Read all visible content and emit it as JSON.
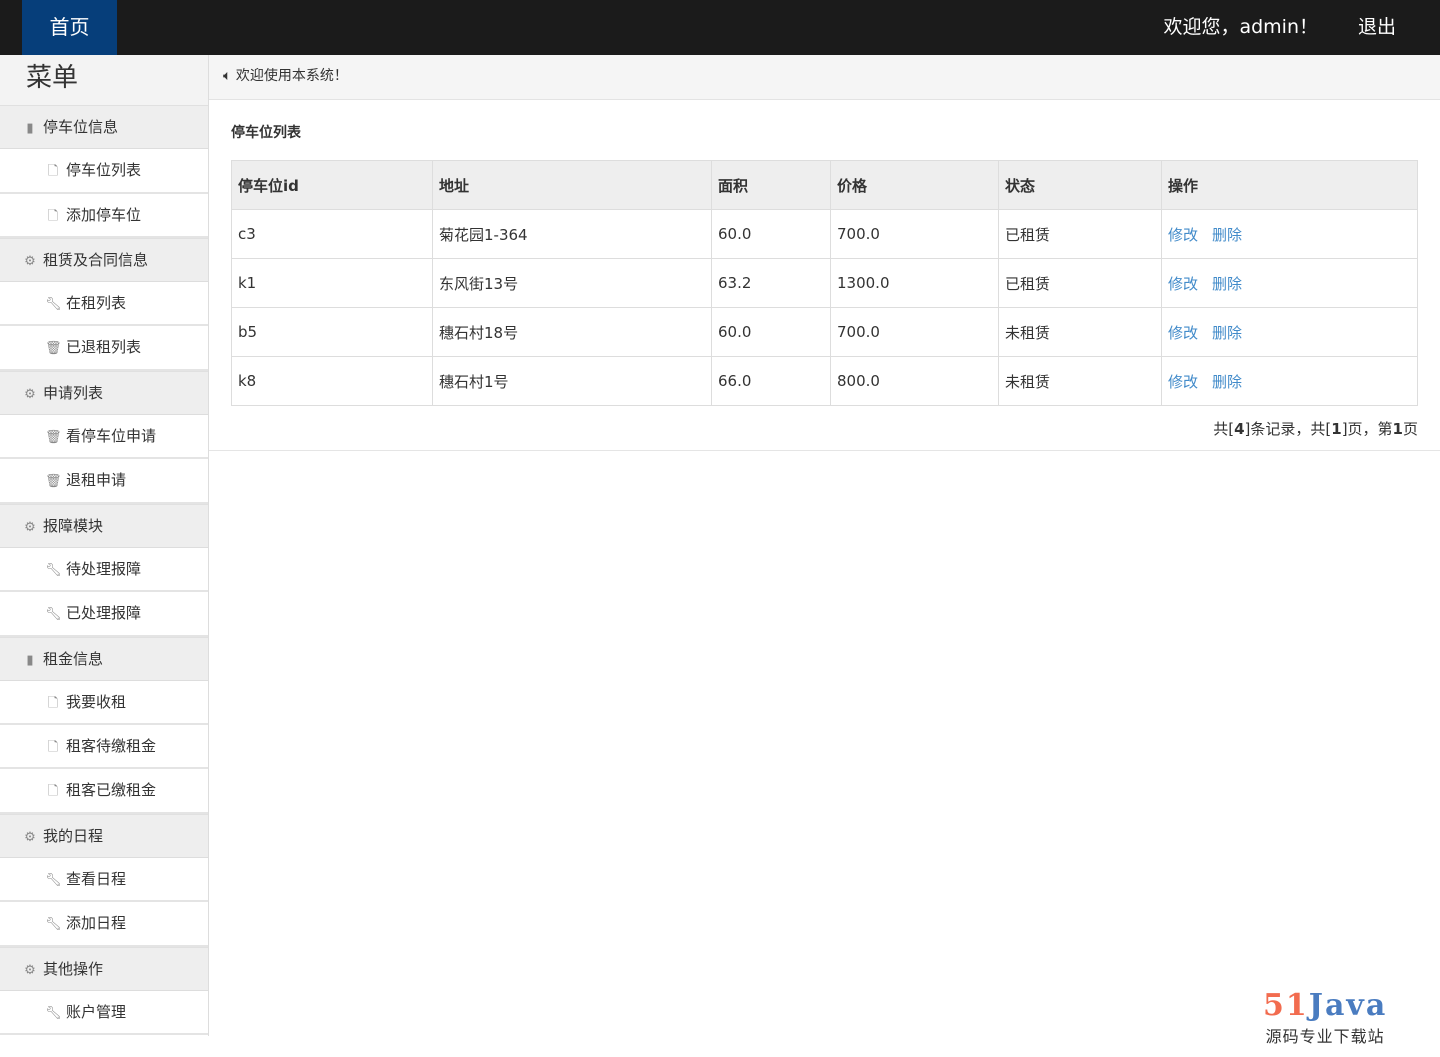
{
  "header": {
    "home": "首页",
    "welcome": "欢迎您，admin！",
    "logout": "退出"
  },
  "sidebar": {
    "title": "菜单",
    "groups": [
      {
        "label": "停车位信息",
        "icon": "book-icon",
        "items": [
          {
            "label": "停车位列表",
            "icon": "file-icon"
          },
          {
            "label": "添加停车位",
            "icon": "file-icon"
          }
        ]
      },
      {
        "label": "租赁及合同信息",
        "icon": "gear-icon",
        "items": [
          {
            "label": "在租列表",
            "icon": "wrench-icon"
          },
          {
            "label": "已退租列表",
            "icon": "trash-icon"
          }
        ]
      },
      {
        "label": "申请列表",
        "icon": "gear-icon",
        "items": [
          {
            "label": "看停车位申请",
            "icon": "trash-icon"
          },
          {
            "label": "退租申请",
            "icon": "trash-icon"
          }
        ]
      },
      {
        "label": "报障模块",
        "icon": "gear-icon",
        "items": [
          {
            "label": "待处理报障",
            "icon": "wrench-icon"
          },
          {
            "label": "已处理报障",
            "icon": "wrench-icon"
          }
        ]
      },
      {
        "label": "租金信息",
        "icon": "book-icon",
        "items": [
          {
            "label": "我要收租",
            "icon": "file-icon"
          },
          {
            "label": "租客待缴租金",
            "icon": "file-icon"
          },
          {
            "label": "租客已缴租金",
            "icon": "file-icon"
          }
        ]
      },
      {
        "label": "我的日程",
        "icon": "gear-icon",
        "items": [
          {
            "label": "查看日程",
            "icon": "wrench-icon"
          },
          {
            "label": "添加日程",
            "icon": "wrench-icon"
          }
        ]
      },
      {
        "label": "其他操作",
        "icon": "gear-icon",
        "items": [
          {
            "label": "账户管理",
            "icon": "wrench-icon"
          }
        ]
      }
    ]
  },
  "notice": "欢迎使用本系统！",
  "main": {
    "title": "停车位列表",
    "columns": [
      "停车位id",
      "地址",
      "面积",
      "价格",
      "状态",
      "操作"
    ],
    "rows": [
      [
        "c3",
        "菊花园1-364",
        "60.0",
        "700.0",
        "已租赁"
      ],
      [
        "k1",
        "东风街13号",
        "63.2",
        "1300.0",
        "已租赁"
      ],
      [
        "b5",
        "穗石村18号",
        "60.0",
        "700.0",
        "未租赁"
      ],
      [
        "k8",
        "穗石村1号",
        "66.0",
        "800.0",
        "未租赁"
      ]
    ],
    "edit": "修改",
    "delete": "删除",
    "pager": {
      "p1": "共[",
      "total": "4",
      "p2": "]条记录，共[",
      "pages": "1",
      "p3": "]页，第",
      "current": "1",
      "p4": "页"
    }
  },
  "logo": {
    "num": "51",
    "word": "Java",
    "sub": "源码专业下载站",
    "colors": {
      "num": "#f26c4f",
      "word": "#4a7cc0"
    }
  }
}
